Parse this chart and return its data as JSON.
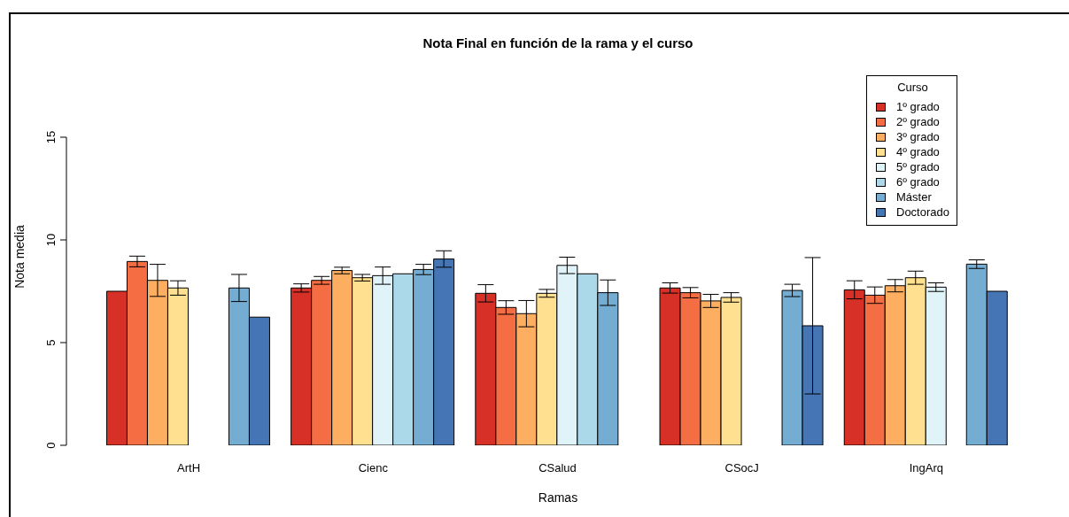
{
  "chart_data": {
    "type": "bar",
    "title": "Nota Final en función de la rama y el curso",
    "xlabel": "Ramas",
    "ylabel": "Nota media",
    "legend_title": "Curso",
    "legend": "top right",
    "categories": [
      "ArtH",
      "Cienc",
      "CSalud",
      "CSocJ",
      "IngArq"
    ],
    "ylim": [
      0,
      15
    ],
    "yticks": [
      0,
      5,
      10,
      15
    ],
    "series": [
      {
        "name": "1º grado",
        "color": "#d73027",
        "values": [
          7.5,
          7.66,
          7.4,
          7.66,
          7.57
        ],
        "errors": [
          null,
          0.2,
          0.42,
          0.25,
          0.44
        ]
      },
      {
        "name": "2º grado",
        "color": "#f46d43",
        "values": [
          8.95,
          8.03,
          6.71,
          7.43,
          7.31
        ],
        "errors": [
          0.26,
          0.19,
          0.33,
          0.25,
          0.4
        ]
      },
      {
        "name": "3º grado",
        "color": "#fdae61",
        "values": [
          8.03,
          8.51,
          6.41,
          7.03,
          7.77
        ],
        "errors": [
          0.78,
          0.16,
          0.64,
          0.32,
          0.3
        ]
      },
      {
        "name": "4º grado",
        "color": "#fee090",
        "values": [
          7.66,
          8.16,
          7.4,
          7.2,
          8.16
        ],
        "errors": [
          0.35,
          0.16,
          0.19,
          0.23,
          0.32
        ]
      },
      {
        "name": "5º grado",
        "color": "#e0f3f8",
        "values": [
          null,
          8.26,
          8.76,
          null,
          7.7
        ],
        "errors": [
          null,
          0.42,
          0.4,
          null,
          0.21
        ]
      },
      {
        "name": "6º grado",
        "color": "#abd9e9",
        "values": [
          null,
          8.35,
          8.35,
          null,
          null
        ]
      },
      {
        "name": "Máster",
        "color": "#74add1",
        "values": [
          7.66,
          8.56,
          7.43,
          7.54,
          8.82
        ],
        "errors": [
          0.66,
          0.25,
          0.62,
          0.3,
          0.21
        ]
      },
      {
        "name": "Doctorado",
        "color": "#4575b4",
        "values": [
          6.24,
          9.07,
          null,
          5.82,
          7.5
        ],
        "errors": [
          null,
          0.4,
          null,
          3.32,
          null
        ]
      }
    ]
  }
}
